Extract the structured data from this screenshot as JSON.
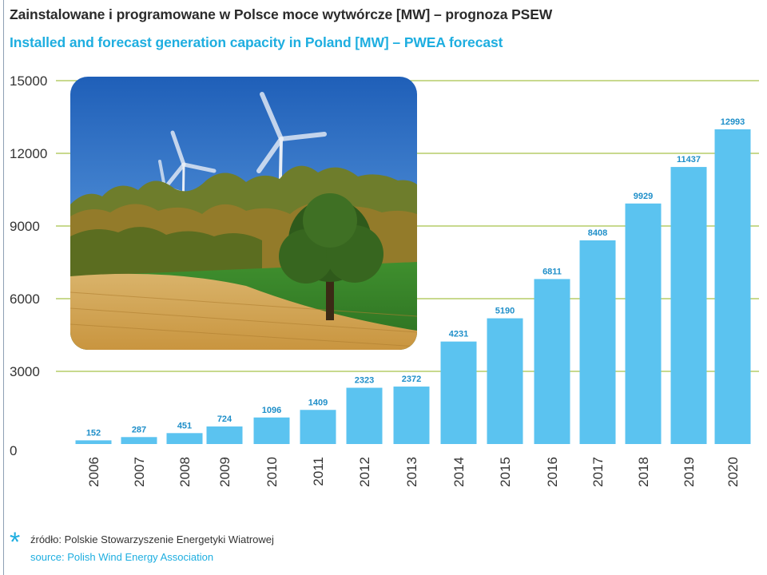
{
  "title_pl": "Zainstalowane i programowane w Polsce moce wytwórcze [MW] – prognoza PSEW",
  "title_en": "Installed and forecast generation capacity in Poland [MW] – PWEA forecast",
  "source_star": "*",
  "source_pl": "źródło: Polskie Stowarzyszenie Energetyki Wiatrowej",
  "source_en": "source: Polish Wind Energy Association",
  "colors": {
    "bar": "#5bc3f0",
    "label": "#1f8fc9",
    "grid": "#a6c24a",
    "title_en": "#1eaee0"
  },
  "photo_icon": "wind-turbines-landscape-photo",
  "chart_data": {
    "type": "bar",
    "title": "Installed and forecast generation capacity in Poland [MW] – PWEA forecast",
    "categories": [
      "2006",
      "2007",
      "2008",
      "2009",
      "2010",
      "2011",
      "2012",
      "2013",
      "2014",
      "2015",
      "2016",
      "2017",
      "2018",
      "2019",
      "2020"
    ],
    "values": [
      152,
      287,
      451,
      724,
      1096,
      1409,
      2323,
      2372,
      4231,
      5190,
      6811,
      8408,
      9929,
      11437,
      12993
    ],
    "y_ticks": [
      "0",
      "3000",
      "6000",
      "9000",
      "12000",
      "15000"
    ],
    "ylim": [
      0,
      15000
    ],
    "grid": true,
    "legend": "none"
  }
}
